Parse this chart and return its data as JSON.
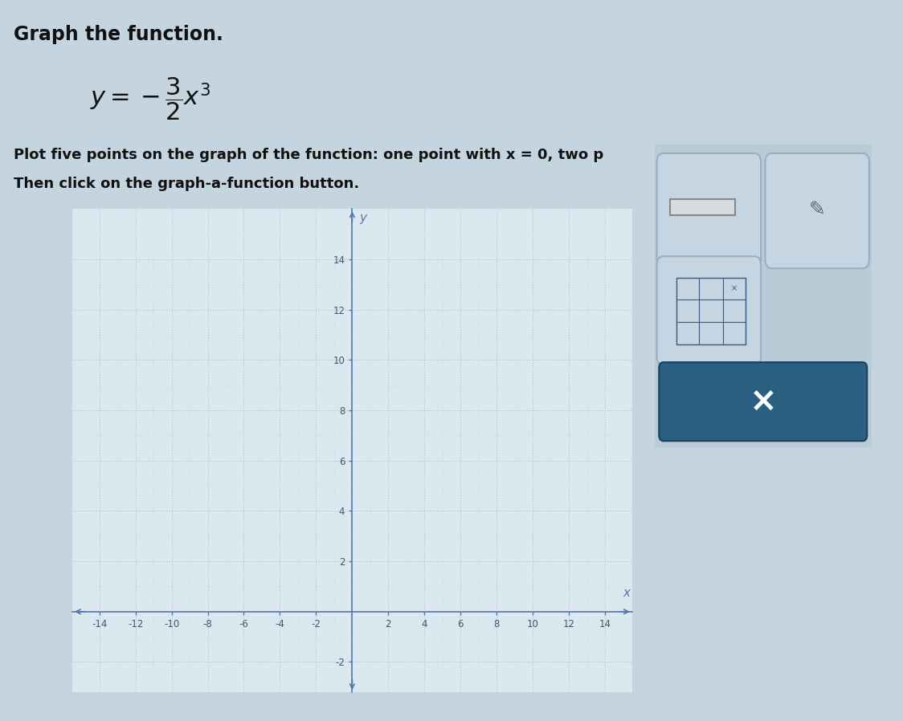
{
  "title": "Graph the function.",
  "equation_display": "$y=-\\dfrac{3}{2}x^{3}$",
  "instruction_line1": "Plot five points on the graph of the function: one point with x = 0, two p",
  "instruction_line2": "Then click on the graph-a-function button.",
  "xlim": [
    -15.5,
    15.5
  ],
  "ylim": [
    -3.2,
    16.0
  ],
  "x_ticks": [
    -14,
    -12,
    -10,
    -8,
    -6,
    -4,
    -2,
    2,
    4,
    6,
    8,
    10,
    12,
    14
  ],
  "y_ticks": [
    -2,
    2,
    4,
    6,
    8,
    10,
    12,
    14
  ],
  "grid_major_color": "#afc4d4",
  "grid_minor_color": "#c8d8e5",
  "axis_color": "#5577aa",
  "plot_bg": "#dce8f0",
  "outer_bg": "#c5d5e0",
  "panel_bg": "#c5d5e0",
  "btn_bg": "#b8ccd8",
  "btn_dark": "#2a5f80",
  "text_color": "#111111",
  "tick_color": "#445566"
}
